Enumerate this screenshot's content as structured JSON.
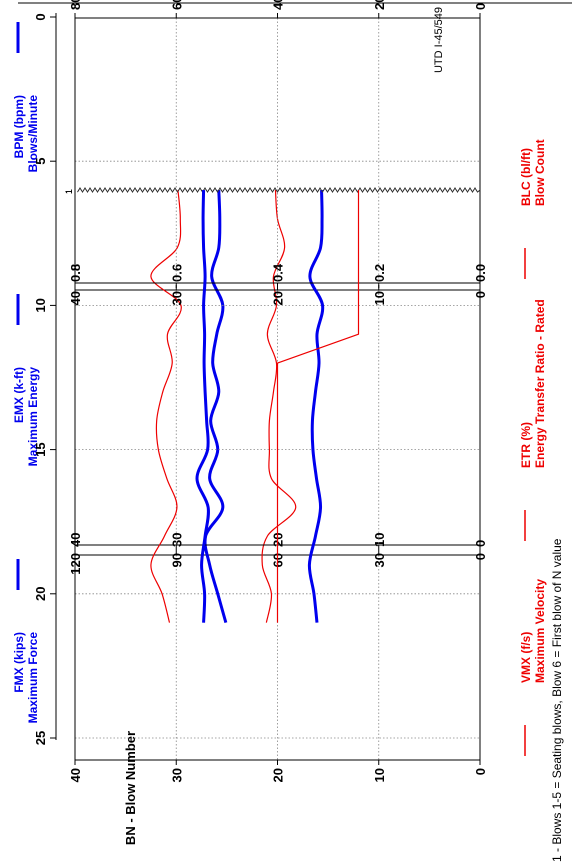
{
  "header_text": "UTD I-45/549",
  "footnote": "1 - Blows 1-5 = Seating blows, Blow 6 = First blow of N value",
  "x_axis": {
    "label": "BN - Blow Number",
    "range": [
      0,
      25
    ],
    "ticks": [
      "0",
      "5",
      "10",
      "15",
      "20",
      "25"
    ],
    "marker": {
      "x": 6,
      "label": "1"
    }
  },
  "chart_data": [
    {
      "type": "line",
      "xlim": [
        0,
        25
      ],
      "left_axis": {
        "label_line1": "FMX (kips)",
        "label_line2": "Maximum Force",
        "range": [
          0,
          40
        ],
        "ticks": [
          "0",
          "10",
          "20",
          "30",
          "40"
        ]
      },
      "right_axis": {
        "label_line1": "VMX (f/s)",
        "label_line2": "Maximum Velocity",
        "range": [
          0,
          40
        ],
        "ticks": [
          "0",
          "10",
          "20",
          "30",
          "40"
        ]
      },
      "series": [
        {
          "name": "FMX (kips)",
          "axis": "left",
          "color": "#0000ee",
          "x": [
            6,
            7,
            8,
            9,
            10,
            11,
            12,
            13,
            14,
            15,
            16,
            17,
            18,
            19,
            20,
            21
          ],
          "values": [
            25.8,
            25.7,
            25.8,
            26.5,
            25.4,
            26.0,
            26.4,
            25.8,
            26.6,
            25.9,
            26.7,
            25.4,
            27.1,
            26.7,
            25.9,
            25.1
          ]
        },
        {
          "name": "VMX (f/s)",
          "axis": "right",
          "color": "#ee0000",
          "x": [
            6,
            7,
            8,
            9,
            10,
            11,
            12,
            13,
            14,
            15,
            16,
            17,
            18,
            19,
            20,
            21
          ],
          "values": [
            20.2,
            20.0,
            19.3,
            20.4,
            20.1,
            21.0,
            20.1,
            20.4,
            20.8,
            20.8,
            20.6,
            18.2,
            21.0,
            21.5,
            20.6,
            21.1
          ]
        }
      ]
    },
    {
      "type": "line",
      "xlim": [
        0,
        25
      ],
      "left_axis": {
        "label_line1": "EMX (k-ft)",
        "label_line2": "Maximum Energy",
        "range": [
          0,
          0.8
        ],
        "ticks": [
          "0.0",
          "0.2",
          "0.4",
          "0.6",
          "0.8"
        ]
      },
      "right_axis": {
        "label_line1": "ETR (%)",
        "label_line2": "Energy Transfer Ratio - Rated",
        "range": [
          0,
          120
        ],
        "ticks": [
          "0",
          "30",
          "60",
          "90",
          "120"
        ]
      },
      "series": [
        {
          "name": "EMX (k-ft)",
          "axis": "left",
          "color": "#0000ee",
          "x": [
            6,
            7,
            8,
            9,
            10,
            11,
            12,
            13,
            14,
            15,
            16,
            17,
            18,
            19,
            20,
            21
          ],
          "values": [
            0.313,
            0.312,
            0.315,
            0.336,
            0.311,
            0.322,
            0.318,
            0.325,
            0.331,
            0.33,
            0.323,
            0.315,
            0.325,
            0.337,
            0.328,
            0.322
          ]
        },
        {
          "name": "ETR (%)",
          "axis": "right",
          "color": "#ee0000",
          "x": [
            6,
            7,
            8,
            9,
            10,
            11,
            12,
            13,
            14,
            15,
            16,
            17,
            18,
            19,
            20,
            21
          ],
          "values": [
            89.5,
            88.8,
            89.7,
            97.5,
            88.6,
            92.6,
            91.2,
            94.0,
            95.8,
            95.3,
            92.8,
            89.8,
            93.5,
            97.5,
            94.2,
            92.0
          ]
        }
      ]
    },
    {
      "type": "line",
      "xlim": [
        0,
        25
      ],
      "left_axis": {
        "label_line1": "BPM (bpm)",
        "label_line2": "Blows/Minute",
        "range": [
          0,
          80
        ],
        "ticks": [
          "0",
          "20",
          "40",
          "60",
          "80"
        ]
      },
      "right_axis": {
        "label_line1": "BLC (bl/ft)",
        "label_line2": "Blow Count",
        "range": [
          0,
          40
        ],
        "ticks": [
          "0",
          "10",
          "20",
          "30",
          "40"
        ]
      },
      "series": [
        {
          "name": "BPM (bpm)",
          "axis": "left",
          "color": "#0000ee",
          "x": [
            6,
            7,
            8,
            9,
            10,
            11,
            12,
            13,
            14,
            15,
            16,
            17,
            18,
            19,
            20,
            21
          ],
          "values": [
            54.6,
            54.7,
            54.6,
            54.3,
            54.6,
            54.4,
            54.5,
            54.3,
            54.0,
            53.8,
            55.9,
            53.7,
            54.3,
            55.0,
            54.4,
            54.6
          ]
        },
        {
          "name": "BLC (bl/ft)",
          "axis": "right",
          "color": "#ee0000",
          "step": true,
          "x": [
            6,
            11,
            12,
            21
          ],
          "values": [
            12,
            12,
            20,
            20
          ]
        }
      ]
    }
  ]
}
